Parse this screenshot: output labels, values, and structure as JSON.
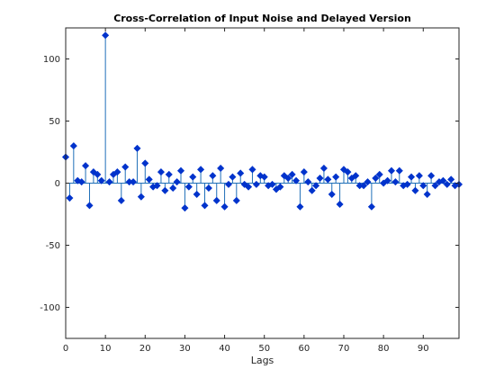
{
  "chart_data": {
    "type": "stem",
    "title": "Cross-Correlation of Input Noise and Delayed Version",
    "xlabel": "Lags",
    "ylabel": "",
    "xlim": [
      0,
      99
    ],
    "ylim": [
      -125,
      125
    ],
    "xticks": [
      0,
      10,
      20,
      30,
      40,
      50,
      60,
      70,
      80,
      90
    ],
    "yticks": [
      -100,
      -50,
      0,
      50,
      100
    ],
    "grid": false,
    "colors": {
      "stem": "#1f6fb8",
      "marker": "#0033cc",
      "axis": "#262626"
    },
    "series": [
      {
        "marker": "filled-diamond",
        "x": [
          0,
          1,
          2,
          3,
          4,
          5,
          6,
          7,
          8,
          9,
          10,
          11,
          12,
          13,
          14,
          15,
          16,
          17,
          18,
          19,
          20,
          21,
          22,
          23,
          24,
          25,
          26,
          27,
          28,
          29,
          30,
          31,
          32,
          33,
          34,
          35,
          36,
          37,
          38,
          39,
          40,
          41,
          42,
          43,
          44,
          45,
          46,
          47,
          48,
          49,
          50,
          51,
          52,
          53,
          54,
          55,
          56,
          57,
          58,
          59,
          60,
          61,
          62,
          63,
          64,
          65,
          66,
          67,
          68,
          69,
          70,
          71,
          72,
          73,
          74,
          75,
          76,
          77,
          78,
          79,
          80,
          81,
          82,
          83,
          84,
          85,
          86,
          87,
          88,
          89,
          90,
          91,
          92,
          93,
          94,
          95,
          96,
          97,
          98,
          99
        ],
        "values": [
          21,
          -12,
          30,
          2,
          1,
          14,
          -18,
          9,
          7,
          2,
          119,
          1,
          7,
          9,
          -14,
          13,
          1,
          1,
          28,
          -11,
          16,
          3,
          -3,
          -2,
          9,
          -6,
          7,
          -4,
          1,
          10,
          -20,
          -3,
          5,
          -9,
          11,
          -18,
          -4,
          6,
          -14,
          12,
          -19,
          -1,
          5,
          -14,
          8,
          -1,
          -3,
          11,
          -1,
          6,
          5,
          -2,
          -1,
          -5,
          -3,
          6,
          4,
          7,
          2,
          -19,
          9,
          1,
          -6,
          -2,
          4,
          12,
          3,
          -9,
          5,
          -17,
          11,
          9,
          4,
          6,
          -2,
          -2,
          1,
          -19,
          4,
          7,
          0,
          2,
          10,
          1,
          10,
          -2,
          -1,
          5,
          -6,
          6,
          -2,
          -9,
          6,
          -2,
          1,
          2,
          -1,
          3,
          -2,
          -1
        ]
      }
    ]
  }
}
